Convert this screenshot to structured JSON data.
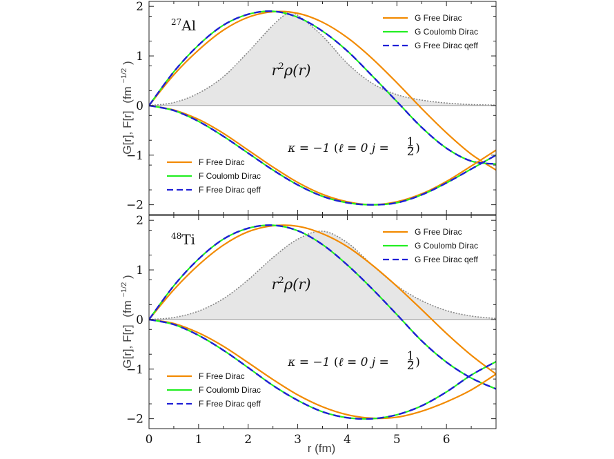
{
  "figure": {
    "xlabel": "r (fm)",
    "ylabel_main": "G[r], F[r]",
    "ylabel_units": "(fm",
    "ylabel_exp": "−1/2",
    "ylabel_close": ")"
  },
  "colors": {
    "orange": "#f28a00",
    "green": "#22ee22",
    "blue": "#1f1fd6",
    "density_fill": "#e6e6e6",
    "density_line": "#888888"
  },
  "chart_data": [
    {
      "type": "line",
      "panel": "top",
      "nucleus_mass": "27",
      "nucleus_symbol": "Al",
      "density_label_coef": "r",
      "density_label_exp": "2",
      "density_label_func": "ρ(r)",
      "state_label": "κ = −1 (ℓ = 0  j = ½)",
      "state_label_parts": {
        "kappa": "κ = −1",
        "open": "(",
        "ell": "ℓ = 0",
        "j": "j = ",
        "half_num": "1",
        "half_den": "2",
        "close": ")"
      },
      "xlim": [
        0,
        7
      ],
      "ylim": [
        -2.2,
        2.1
      ],
      "xticks": [
        0,
        1,
        2,
        3,
        4,
        5,
        6
      ],
      "yticks": [
        -2,
        -1,
        0,
        1,
        2
      ],
      "legend_G": [
        "G Free Dirac",
        "G Coulomb Dirac",
        "G Free Dirac qeff"
      ],
      "legend_F": [
        "F Free Dirac",
        "F Coulomb Dirac",
        "F Free Dirac qeff"
      ],
      "x": [
        0,
        0.5,
        1,
        1.5,
        2,
        2.5,
        3,
        3.5,
        4,
        4.5,
        5,
        5.5,
        6,
        6.5,
        7
      ],
      "series": [
        {
          "name": "G Free Dirac",
          "color": "orange",
          "dash": "none",
          "values": [
            0,
            0.62,
            1.12,
            1.52,
            1.78,
            1.89,
            1.86,
            1.68,
            1.37,
            0.95,
            0.46,
            -0.06,
            -0.55,
            -0.98,
            -1.3
          ]
        },
        {
          "name": "G Coulomb Dirac",
          "color": "green",
          "dash": "none",
          "values": [
            0,
            0.68,
            1.22,
            1.62,
            1.84,
            1.9,
            1.78,
            1.5,
            1.1,
            0.6,
            0.08,
            -0.44,
            -0.86,
            -1.12,
            -1.18
          ]
        },
        {
          "name": "G Free Dirac qeff",
          "color": "blue",
          "dash": "dash",
          "values": [
            0,
            0.68,
            1.22,
            1.62,
            1.84,
            1.9,
            1.78,
            1.5,
            1.1,
            0.6,
            0.08,
            -0.44,
            -0.86,
            -1.12,
            -1.18
          ]
        },
        {
          "name": "F Free Dirac",
          "color": "orange",
          "dash": "none",
          "values": [
            0,
            -0.09,
            -0.28,
            -0.56,
            -0.9,
            -1.24,
            -1.55,
            -1.79,
            -1.94,
            -2.0,
            -1.94,
            -1.78,
            -1.53,
            -1.22,
            -0.9
          ]
        },
        {
          "name": "F Coulomb Dirac",
          "color": "green",
          "dash": "none",
          "values": [
            0,
            -0.1,
            -0.32,
            -0.62,
            -0.96,
            -1.3,
            -1.6,
            -1.83,
            -1.96,
            -2.0,
            -1.96,
            -1.8,
            -1.56,
            -1.28,
            -1.0
          ]
        },
        {
          "name": "F Free Dirac qeff",
          "color": "blue",
          "dash": "dash",
          "values": [
            0,
            -0.1,
            -0.32,
            -0.62,
            -0.96,
            -1.3,
            -1.6,
            -1.83,
            -1.96,
            -2.0,
            -1.96,
            -1.8,
            -1.56,
            -1.28,
            -1.0
          ]
        }
      ],
      "density": {
        "x": [
          0,
          0.5,
          1,
          1.5,
          2,
          2.5,
          2.8,
          3,
          3.5,
          4,
          4.5,
          5,
          5.5,
          6,
          6.5,
          7
        ],
        "values": [
          0,
          0.06,
          0.25,
          0.58,
          1.08,
          1.62,
          1.86,
          1.82,
          1.4,
          0.85,
          0.45,
          0.22,
          0.11,
          0.05,
          0.02,
          0.01
        ]
      }
    },
    {
      "type": "line",
      "panel": "bottom",
      "nucleus_mass": "48",
      "nucleus_symbol": "Ti",
      "density_label_coef": "r",
      "density_label_exp": "2",
      "density_label_func": "ρ(r)",
      "state_label": "κ = −1 (ℓ = 0  j = ½)",
      "state_label_parts": {
        "kappa": "κ = −1",
        "open": "(",
        "ell": "ℓ = 0",
        "j": "j = ",
        "half_num": "1",
        "half_den": "2",
        "close": ")"
      },
      "xlim": [
        0,
        7
      ],
      "ylim": [
        -2.2,
        2.1
      ],
      "xticks": [
        0,
        1,
        2,
        3,
        4,
        5,
        6
      ],
      "yticks": [
        -2,
        -1,
        0,
        1,
        2
      ],
      "legend_G": [
        "G Free Dirac",
        "G Coulomb Dirac",
        "G Free Dirac qeff"
      ],
      "legend_F": [
        "F Free Dirac",
        "F Coulomb Dirac",
        "F Free Dirac qeff"
      ],
      "x": [
        0,
        0.5,
        1,
        1.5,
        2,
        2.5,
        3,
        3.5,
        4,
        4.5,
        5,
        5.5,
        6,
        6.5,
        7
      ],
      "series": [
        {
          "name": "G Free Dirac",
          "color": "orange",
          "dash": "none",
          "values": [
            0,
            0.6,
            1.1,
            1.5,
            1.77,
            1.89,
            1.88,
            1.73,
            1.47,
            1.1,
            0.67,
            0.2,
            -0.28,
            -0.72,
            -1.1
          ]
        },
        {
          "name": "G Coulomb Dirac",
          "color": "green",
          "dash": "none",
          "values": [
            0,
            0.68,
            1.22,
            1.62,
            1.84,
            1.9,
            1.79,
            1.51,
            1.1,
            0.62,
            0.1,
            -0.43,
            -0.86,
            -1.18,
            -1.4
          ]
        },
        {
          "name": "G Free Dirac qeff",
          "color": "blue",
          "dash": "dash",
          "values": [
            0,
            0.68,
            1.22,
            1.62,
            1.84,
            1.9,
            1.79,
            1.51,
            1.1,
            0.62,
            0.1,
            -0.43,
            -0.86,
            -1.18,
            -1.4
          ]
        },
        {
          "name": "F Free Dirac",
          "color": "orange",
          "dash": "none",
          "values": [
            0,
            -0.08,
            -0.27,
            -0.54,
            -0.87,
            -1.21,
            -1.52,
            -1.76,
            -1.92,
            -1.99,
            -1.97,
            -1.85,
            -1.66,
            -1.42,
            -1.1
          ]
        },
        {
          "name": "F Coulomb Dirac",
          "color": "green",
          "dash": "none",
          "values": [
            0,
            -0.1,
            -0.32,
            -0.62,
            -0.97,
            -1.33,
            -1.63,
            -1.86,
            -1.98,
            -2.0,
            -1.92,
            -1.74,
            -1.46,
            -1.12,
            -0.85
          ]
        },
        {
          "name": "F Free Dirac qeff",
          "color": "blue",
          "dash": "dash",
          "values": [
            0,
            -0.1,
            -0.32,
            -0.62,
            -0.97,
            -1.33,
            -1.63,
            -1.86,
            -1.98,
            -2.0,
            -1.92,
            -1.74,
            -1.46,
            -1.12,
            -0.85
          ]
        }
      ],
      "density": {
        "x": [
          0,
          0.5,
          1,
          1.5,
          2,
          2.5,
          3,
          3.5,
          4,
          4.5,
          5,
          5.5,
          6,
          6.5,
          7
        ],
        "values": [
          0,
          0.04,
          0.17,
          0.42,
          0.8,
          1.25,
          1.62,
          1.78,
          1.55,
          1.1,
          0.68,
          0.38,
          0.18,
          0.07,
          0.02
        ]
      }
    }
  ]
}
